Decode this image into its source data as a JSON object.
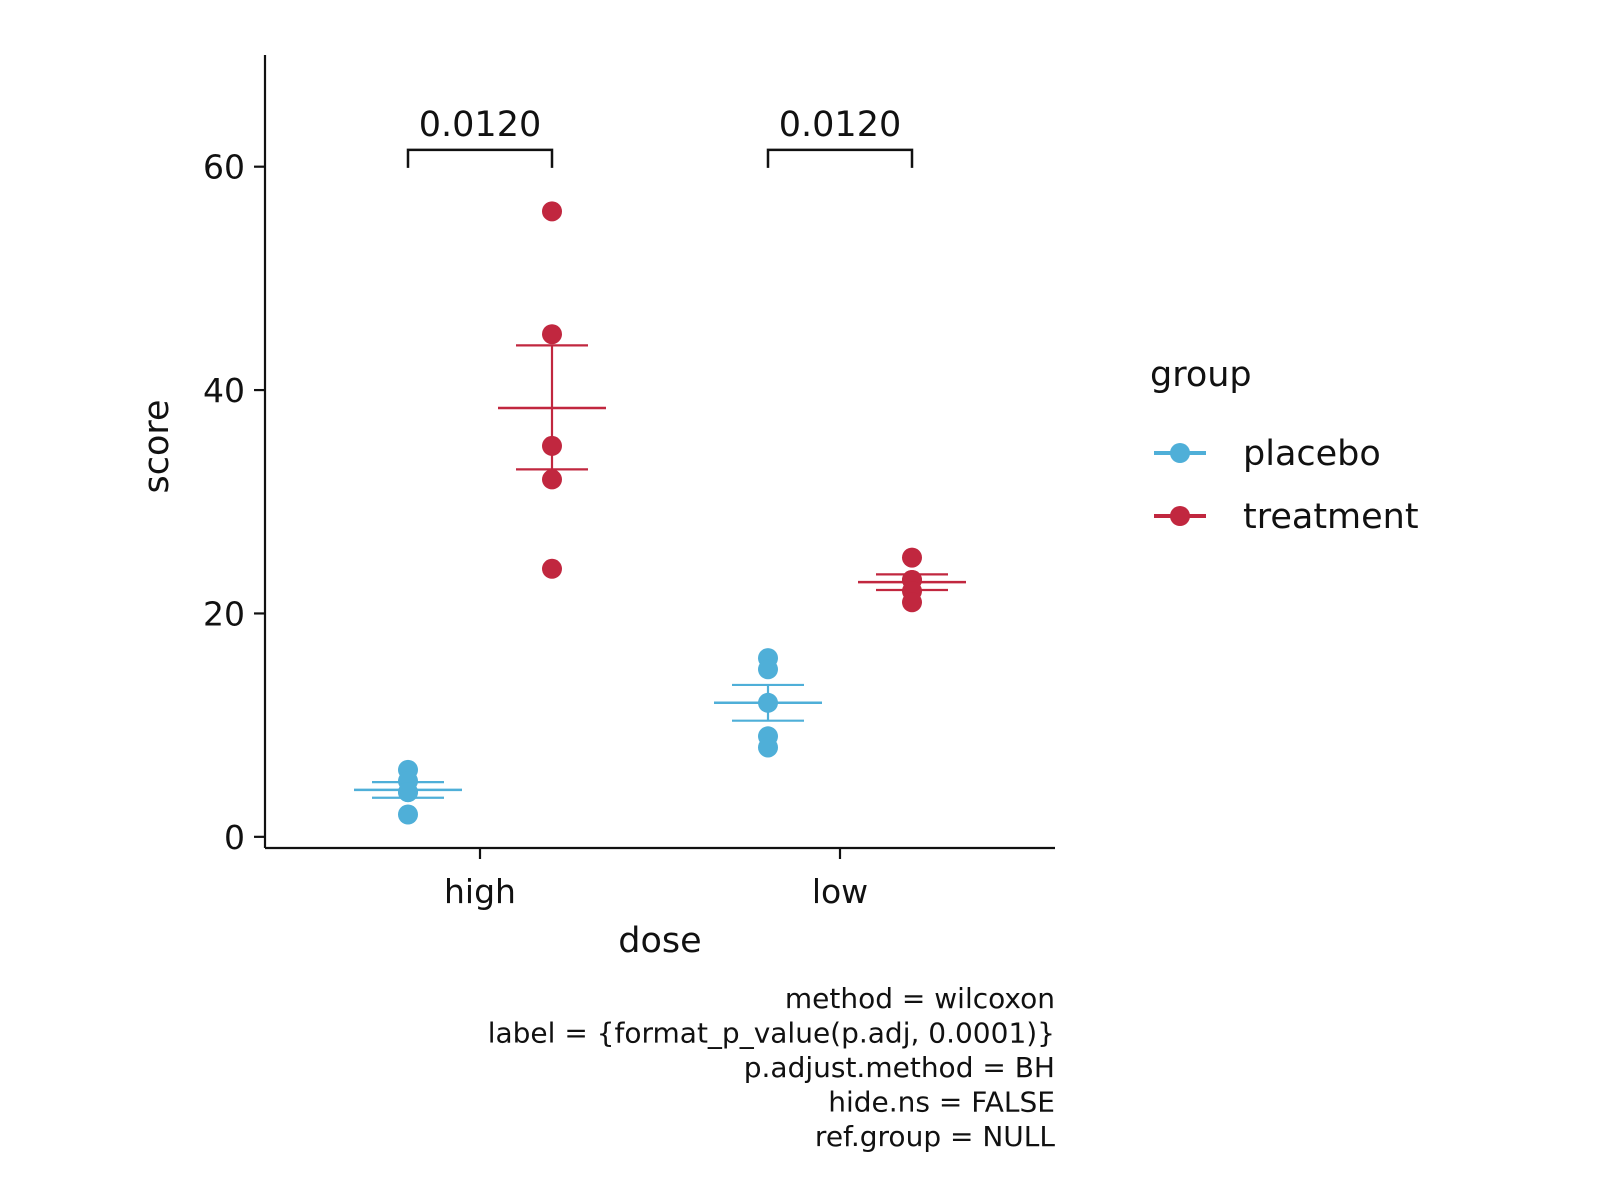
{
  "chart_data": {
    "type": "scatter",
    "xlabel": "dose",
    "ylabel": "score",
    "categories": [
      "high",
      "low"
    ],
    "ylim": [
      -1,
      70
    ],
    "yticks": [
      0,
      20,
      40,
      60
    ],
    "grid": false,
    "legend": {
      "title": "group",
      "placement": "right"
    },
    "colors": {
      "placebo": "#4fafd8",
      "treatment": "#c1273f"
    },
    "series": [
      {
        "name": "placebo",
        "points": [
          {
            "x": "high",
            "y": 6
          },
          {
            "x": "high",
            "y": 5
          },
          {
            "x": "high",
            "y": 4
          },
          {
            "x": "high",
            "y": 4
          },
          {
            "x": "high",
            "y": 2
          },
          {
            "x": "low",
            "y": 16
          },
          {
            "x": "low",
            "y": 15
          },
          {
            "x": "low",
            "y": 12
          },
          {
            "x": "low",
            "y": 9
          },
          {
            "x": "low",
            "y": 8
          }
        ],
        "summary": [
          {
            "x": "high",
            "mean": 4.2,
            "lower": 3.5,
            "upper": 4.9
          },
          {
            "x": "low",
            "mean": 12.0,
            "lower": 10.4,
            "upper": 13.6
          }
        ]
      },
      {
        "name": "treatment",
        "points": [
          {
            "x": "high",
            "y": 56
          },
          {
            "x": "high",
            "y": 45
          },
          {
            "x": "high",
            "y": 35
          },
          {
            "x": "high",
            "y": 32
          },
          {
            "x": "high",
            "y": 24
          },
          {
            "x": "low",
            "y": 25
          },
          {
            "x": "low",
            "y": 23
          },
          {
            "x": "low",
            "y": 23
          },
          {
            "x": "low",
            "y": 22
          },
          {
            "x": "low",
            "y": 21
          }
        ],
        "summary": [
          {
            "x": "high",
            "mean": 38.4,
            "lower": 32.9,
            "upper": 44.0
          },
          {
            "x": "low",
            "mean": 22.8,
            "lower": 22.1,
            "upper": 23.5
          }
        ]
      }
    ],
    "comparisons": [
      {
        "x": "high",
        "label": "0.0120",
        "y": 61.5
      },
      {
        "x": "low",
        "label": "0.0120",
        "y": 61.5
      }
    ],
    "caption": [
      "method = wilcoxon",
      "label = {format_p_value(p.adj, 0.0001)}",
      "p.adjust.method = BH",
      "hide.ns = FALSE",
      "ref.group = NULL"
    ]
  }
}
